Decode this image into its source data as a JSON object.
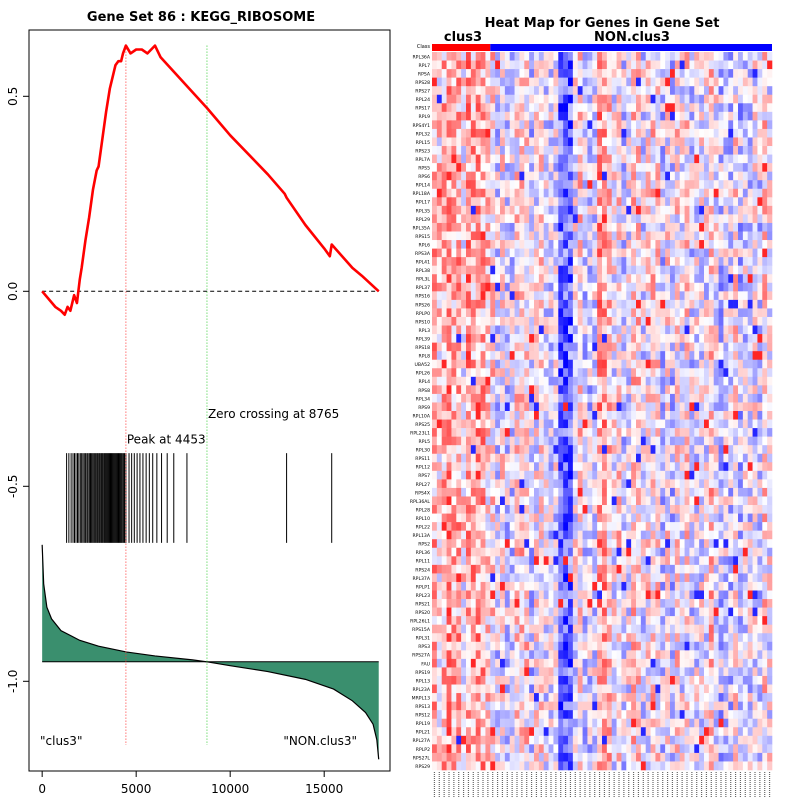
{
  "chart_data": [
    {
      "type": "line",
      "title": "Gene Set  86 : KEGG_RIBOSOME",
      "xlabel": "",
      "ylabel": "",
      "xlim": [
        -700,
        18500
      ],
      "ylim": [
        -1.23,
        0.67
      ],
      "x_ticks": [
        0,
        5000,
        10000,
        15000
      ],
      "x_tick_labels": [
        "0",
        "5000",
        "10000",
        "15000"
      ],
      "y_ticks": [
        0.5,
        0.0,
        -0.5,
        -1.0
      ],
      "y_tick_labels": [
        "0.5",
        "0.0",
        "-0.5",
        "-1.0"
      ],
      "grid": false,
      "series": [
        {
          "name": "",
          "color": "#ff0000",
          "x": [
            0,
            700,
            1000,
            1200,
            1350,
            1500,
            1700,
            1850,
            2000,
            2100,
            2300,
            2500,
            2700,
            2900,
            3000,
            3200,
            3400,
            3600,
            3750,
            3900,
            4050,
            4200,
            4300,
            4453,
            4700,
            5000,
            5300,
            5600,
            6000,
            6300,
            8765,
            10000,
            12000,
            12900,
            13000,
            14000,
            15000,
            15300,
            15400,
            16500,
            17000,
            17900
          ],
          "y": [
            0.0,
            -0.04,
            -0.05,
            -0.06,
            -0.04,
            -0.05,
            -0.01,
            -0.03,
            0.03,
            0.06,
            0.13,
            0.19,
            0.26,
            0.31,
            0.32,
            0.39,
            0.46,
            0.52,
            0.55,
            0.58,
            0.59,
            0.59,
            0.61,
            0.63,
            0.61,
            0.62,
            0.62,
            0.61,
            0.63,
            0.6,
            0.47,
            0.4,
            0.3,
            0.25,
            0.24,
            0.17,
            0.11,
            0.09,
            0.12,
            0.06,
            0.04,
            0.0
          ]
        }
      ],
      "reference_line": {
        "y": 0.0,
        "style": "dashed",
        "color": "#000000"
      },
      "vlines": [
        {
          "x": 4453,
          "color": "#ff3333",
          "style": "dotted"
        },
        {
          "x": 8765,
          "color": "#33cc33",
          "style": "dotted"
        }
      ],
      "annotations": [
        {
          "text": "Peak at 4453",
          "x": 4453
        },
        {
          "text": "Zero crossing at 8765",
          "x": 8765
        },
        {
          "text": "\"clus3\"",
          "position": "bottom-left"
        },
        {
          "text": "\"NON.clus3\"",
          "position": "bottom-right"
        }
      ],
      "hit_positions": [
        1300,
        1420,
        1540,
        1640,
        1720,
        1800,
        1880,
        1950,
        2030,
        2100,
        2170,
        2240,
        2310,
        2380,
        2440,
        2510,
        2570,
        2630,
        2690,
        2750,
        2810,
        2870,
        2930,
        2980,
        3040,
        3090,
        3150,
        3200,
        3250,
        3310,
        3360,
        3410,
        3460,
        3510,
        3560,
        3610,
        3660,
        3710,
        3760,
        3810,
        3860,
        3910,
        3960,
        4010,
        4060,
        4110,
        4160,
        4210,
        4260,
        4320,
        4380,
        4453,
        4620,
        4760,
        4900,
        5050,
        5200,
        5360,
        5530,
        5700,
        5880,
        6100,
        6350,
        6650,
        7000,
        7700,
        13000,
        15400
      ],
      "ranked_metric": {
        "color": "#3a8f6e",
        "baseline": -0.95,
        "x": [
          0,
          80,
          250,
          500,
          1000,
          2000,
          3000,
          4500,
          6000,
          8000,
          8765,
          10000,
          12000,
          14000,
          15500,
          16500,
          17200,
          17600,
          17800,
          17900
        ],
        "y": [
          -0.65,
          -0.75,
          -0.81,
          -0.84,
          -0.87,
          -0.895,
          -0.91,
          -0.925,
          -0.935,
          -0.945,
          -0.95,
          -0.96,
          -0.975,
          -0.995,
          -1.02,
          -1.05,
          -1.08,
          -1.11,
          -1.15,
          -1.2
        ]
      }
    },
    {
      "type": "heatmap",
      "title": "Heat Map for Genes in Gene Set",
      "class_label": "Class",
      "groups": [
        {
          "name": "clus3",
          "count": 12,
          "color": "#ff0000"
        },
        {
          "name": "NON.clus3",
          "count": 58,
          "color": "#0000ff"
        }
      ],
      "rows": [
        "RPL36A",
        "RPL7",
        "RPSA",
        "RPS28",
        "RPS27",
        "RPL24",
        "RPS17",
        "RPL9",
        "RPS4Y1",
        "RPL32",
        "RPL15",
        "RPS23",
        "RPL7A",
        "RPS5",
        "RPS6",
        "RPL14",
        "RPL18A",
        "RPL17",
        "RPL35",
        "RPL29",
        "RPL35A",
        "RPS15",
        "RPL6",
        "RPS3A",
        "RPL41",
        "RPL38",
        "RPL3L",
        "RPL37",
        "RPS16",
        "RPS26",
        "RPLP0",
        "RPS10",
        "RPL3",
        "RPL39",
        "RPS18",
        "RPL8",
        "UBA52",
        "RPL26",
        "RPL4",
        "RPS8",
        "RPL34",
        "RPS9",
        "RPL10A",
        "RPS25",
        "RPL23L1",
        "RPL5",
        "RPL30",
        "RPS11",
        "RPL12",
        "RPS7",
        "RPL27",
        "RPS4X",
        "RPL36AL",
        "RPL28",
        "RPL10",
        "RPL22",
        "RPL13A",
        "RPS2",
        "RPL36",
        "RPL11",
        "RPS24",
        "RPL37A",
        "RPLP1",
        "RPL23",
        "RPS21",
        "RPS20",
        "RPL26L1",
        "RPS15A",
        "RPL31",
        "RPS3",
        "RPS27A",
        "FAU",
        "RPS19",
        "RPL13",
        "RPL23A",
        "MRPL13",
        "RPS13",
        "RPS12",
        "RPL19",
        "RPL21",
        "RPL27A",
        "RPLP2",
        "RPS27L",
        "RPS29"
      ],
      "columns": 70,
      "color_scale": [
        "#0000ff",
        "#ffffff",
        "#ff0000"
      ]
    }
  ]
}
